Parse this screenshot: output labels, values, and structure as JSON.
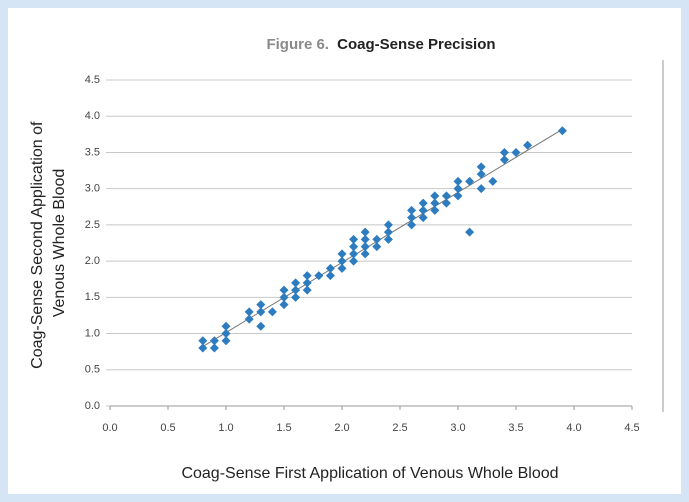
{
  "chart_data": {
    "type": "scatter",
    "figure_label": "Figure 6.",
    "title": "Coag-Sense Precision",
    "x_label": "Coag-Sense First Application of Venous Whole Blood",
    "y_label": [
      "Coag-Sense Second Application of",
      "Venous Whole Blood"
    ],
    "xlim": [
      0,
      4.5
    ],
    "ylim": [
      0,
      4.5
    ],
    "xticks": [
      {
        "value": 0,
        "label": "0.0"
      },
      0.5,
      {
        "value": 1,
        "label": "1.0"
      },
      1.5,
      {
        "value": 2,
        "label": "2.0"
      },
      2.5,
      {
        "value": 3,
        "label": "3.0"
      },
      3.5,
      {
        "value": 4,
        "label": "4.0"
      },
      4.5
    ],
    "yticks": [
      {
        "value": 0,
        "label": "0.0"
      },
      0.5,
      {
        "value": 1,
        "label": "1.0"
      },
      1.5,
      {
        "value": 2,
        "label": "2.0"
      },
      2.5,
      {
        "value": 3,
        "label": "3.0"
      },
      3.5,
      {
        "value": 4,
        "label": "4.0"
      },
      4.5
    ],
    "grid": true,
    "series": [
      {
        "color": "#2e7cc0",
        "x": [
          0.8,
          0.8,
          0.9,
          0.9,
          1.0,
          1.0,
          1.0,
          1.2,
          1.2,
          1.3,
          1.3,
          1.3,
          1.4,
          1.5,
          1.5,
          1.5,
          1.6,
          1.6,
          1.6,
          1.7,
          1.7,
          1.7,
          1.8,
          1.9,
          1.9,
          2.0,
          2.0,
          2.0,
          2.1,
          2.1,
          2.1,
          2.1,
          2.2,
          2.2,
          2.2,
          2.2,
          2.3,
          2.3,
          2.4,
          2.4,
          2.4,
          2.6,
          2.6,
          2.6,
          2.7,
          2.7,
          2.7,
          2.8,
          2.8,
          2.8,
          2.9,
          2.9,
          3.0,
          3.0,
          3.0,
          3.1,
          3.1,
          3.2,
          3.2,
          3.2,
          3.3,
          3.4,
          3.4,
          3.5,
          3.6,
          3.9
        ],
        "y": [
          0.9,
          0.8,
          0.9,
          0.8,
          1.1,
          1.0,
          0.9,
          1.3,
          1.2,
          1.4,
          1.3,
          1.1,
          1.3,
          1.6,
          1.5,
          1.4,
          1.7,
          1.6,
          1.5,
          1.8,
          1.7,
          1.6,
          1.8,
          1.9,
          1.8,
          2.1,
          2.0,
          1.9,
          2.3,
          2.2,
          2.1,
          2.0,
          2.4,
          2.3,
          2.2,
          2.1,
          2.3,
          2.2,
          2.5,
          2.4,
          2.3,
          2.7,
          2.6,
          2.5,
          2.8,
          2.7,
          2.6,
          2.9,
          2.8,
          2.7,
          2.9,
          2.8,
          3.1,
          3.0,
          2.9,
          3.1,
          2.4,
          3.3,
          3.2,
          3.0,
          3.1,
          3.5,
          3.4,
          3.5,
          3.6,
          3.8
        ]
      }
    ],
    "trendline": {
      "color": "#777777",
      "x": [
        0.8,
        3.9
      ],
      "y": [
        0.82,
        3.82
      ]
    }
  }
}
